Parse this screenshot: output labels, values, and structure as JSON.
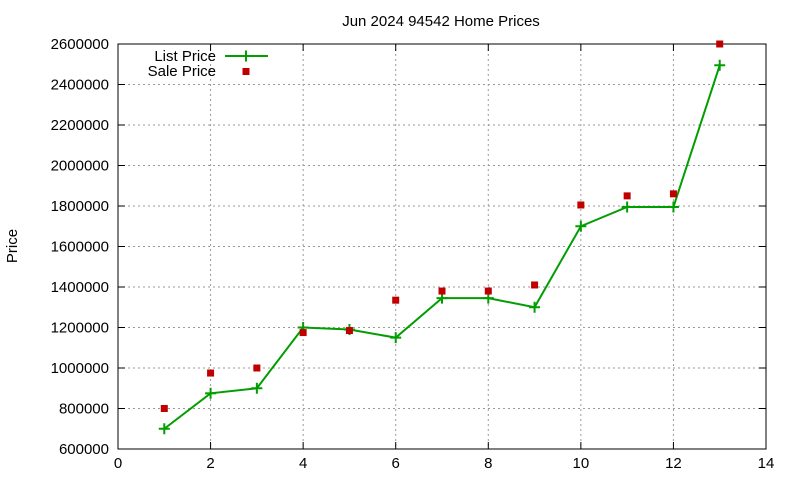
{
  "chart_data": {
    "type": "line",
    "title": "Jun 2024 94542 Home Prices",
    "xlabel": "",
    "ylabel": "Price",
    "xlim": [
      0,
      14
    ],
    "ylim": [
      600000,
      2600000
    ],
    "xticks": [
      0,
      2,
      4,
      6,
      8,
      10,
      12,
      14
    ],
    "yticks": [
      600000,
      800000,
      1000000,
      1200000,
      1400000,
      1600000,
      1800000,
      2000000,
      2200000,
      2400000,
      2600000
    ],
    "grid": true,
    "legend_position": "top-left",
    "series": [
      {
        "name": "List Price",
        "style": "line-with-plus-markers",
        "color": "#009e00",
        "x": [
          1,
          2,
          3,
          4,
          5,
          6,
          7,
          8,
          9,
          10,
          11,
          12,
          13
        ],
        "y": [
          700000,
          875000,
          900000,
          1200000,
          1190000,
          1150000,
          1345000,
          1345000,
          1300000,
          1700000,
          1795000,
          1795000,
          2495000
        ]
      },
      {
        "name": "Sale Price",
        "style": "square-markers",
        "color": "#c00000",
        "x": [
          1,
          2,
          3,
          4,
          5,
          6,
          7,
          8,
          9,
          10,
          11,
          12,
          13
        ],
        "y": [
          800000,
          975000,
          1000000,
          1175000,
          1185000,
          1335000,
          1380000,
          1380000,
          1410000,
          1805000,
          1850000,
          1860000,
          2600000
        ]
      }
    ]
  }
}
